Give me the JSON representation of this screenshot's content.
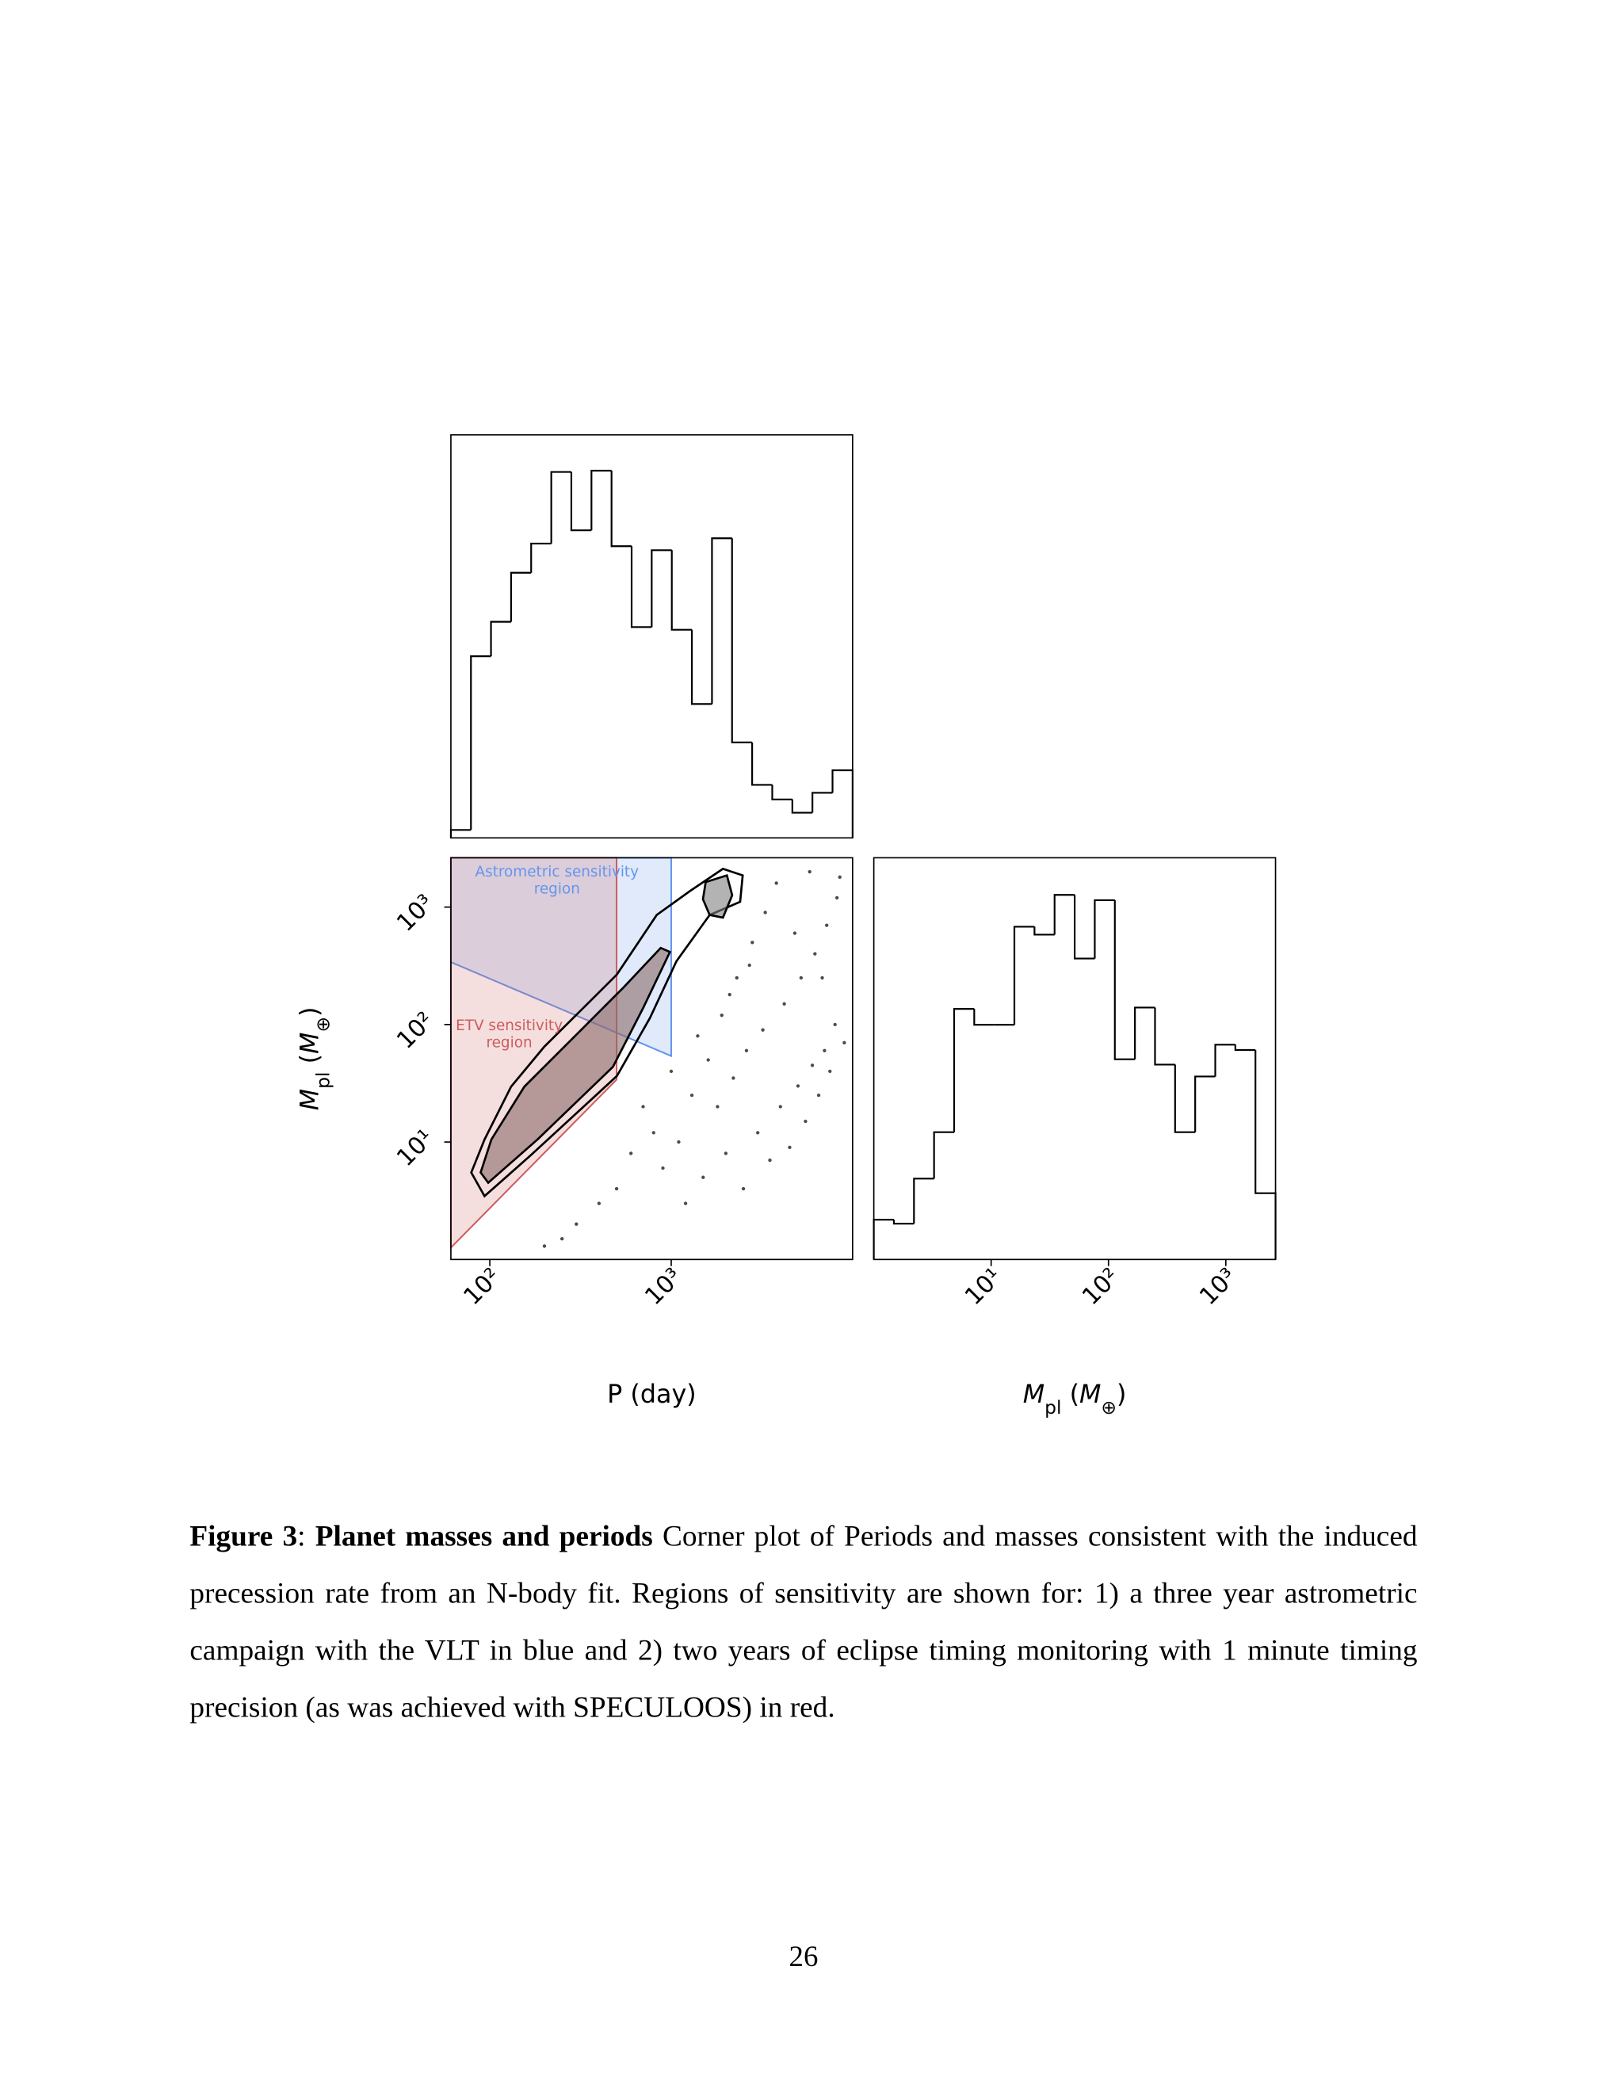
{
  "chart_data": [
    {
      "type": "histogram",
      "xscale": "log",
      "xlim": [
        61,
        10000
      ],
      "ylim": [
        0,
        304
      ],
      "color": "#000000",
      "bins": [
        61.0,
        78.7,
        101.5,
        131.0,
        169.0,
        218.2,
        281.5,
        363.3,
        468.8,
        605.0,
        780.6,
        1007.6,
        1300,
        1678,
        2165,
        2794,
        3606,
        4654,
        6005,
        7750,
        10000
      ],
      "values": [
        6,
        137,
        163,
        200,
        222,
        276,
        232,
        277,
        220,
        159,
        217,
        157,
        101,
        226,
        72,
        40,
        29,
        19,
        34,
        51
      ]
    },
    {
      "type": "scatter2d",
      "xscale": "log",
      "yscale": "log",
      "xlim": [
        61,
        10000
      ],
      "ylim": [
        1,
        2630
      ],
      "xticks": [
        {
          "value": 100,
          "label": "10²"
        },
        {
          "value": 1000,
          "label": "10³"
        }
      ],
      "yticks": [
        {
          "value": 10,
          "label": "10¹"
        },
        {
          "value": 100,
          "label": "10²"
        },
        {
          "value": 1000,
          "label": "10³"
        }
      ],
      "xlabel": "P (day)",
      "ylabel": [
        {
          "text": "M",
          "style": "italic"
        },
        {
          "text": "pl",
          "style": "sub"
        },
        {
          "text": " (",
          "style": "normal"
        },
        {
          "text": "M",
          "style": "italic"
        },
        {
          "text": "⊕",
          "style": "sub"
        },
        {
          "text": ")",
          "style": "normal"
        }
      ],
      "regions": [
        {
          "label": [
            "Astrometric sensitivity",
            "region"
          ],
          "color": "#6495ed",
          "x": [
            61,
            1000,
            1000,
            61
          ],
          "y": [
            340,
            54,
            2630,
            2630
          ]
        },
        {
          "label": [
            "ETV sensitivity",
            "region"
          ],
          "color": "#cd5c5c",
          "x": [
            61,
            500,
            500,
            61
          ],
          "y": [
            1.26,
            34,
            2630,
            2630
          ]
        }
      ],
      "points": {
        "color": "#000000",
        "x": [
          1200,
          1500,
          2000,
          3000,
          4000,
          5000,
          6000,
          7000,
          8000,
          2500,
          3500,
          4500,
          5500,
          6500,
          7500,
          9000,
          1800,
          2200,
          2600,
          3200,
          4200,
          5200,
          6200,
          7200,
          8200,
          1100,
          1300,
          1600,
          1900,
          2300,
          2800,
          3300,
          900,
          800,
          700,
          600,
          500,
          400,
          300,
          250,
          200,
          1000,
          1400,
          2100,
          2700,
          3800,
          5800,
          8500,
          4800,
          6800
        ],
        "y": [
          3,
          5,
          8,
          12,
          20,
          30,
          45,
          60,
          100,
          4,
          7,
          9,
          15,
          25,
          40,
          70,
          20,
          35,
          60,
          90,
          150,
          250,
          400,
          700,
          1200,
          10,
          25,
          50,
          120,
          250,
          500,
          900,
          6,
          12,
          20,
          8,
          4,
          3,
          2,
          1.5,
          1.3,
          40,
          80,
          180,
          320,
          1600,
          2000,
          1800,
          600,
          250
        ]
      },
      "contours": [
        {
          "color": "#000000",
          "fill": "none",
          "x": [
            79,
            93.5,
            168,
            502,
            764,
            1069,
            1629,
            2399,
            2478,
            1928,
            1265,
            832,
            502,
            330,
            199,
            131,
            93.5
          ],
          "y": [
            5.5,
            3.46,
            7.7,
            36.5,
            114,
            346,
            857,
            1109,
            1862,
            2118,
            1365,
            857,
            267,
            140,
            64.4,
            29.6,
            10.5
          ]
        },
        {
          "color": "#000000",
          "fill": "#8a6a6a",
          "x": [
            89,
            98,
            183,
            477,
            703,
            984,
            875,
            546,
            330,
            155,
            102
          ],
          "y": [
            5.5,
            4.5,
            10.5,
            43.6,
            140,
            415,
            449,
            207,
            95,
            29.6,
            10.5
          ]
        },
        {
          "color": "#000000",
          "fill": "#808080",
          "x": [
            1549,
            2028,
            2169,
            1928,
            1629,
            1496
          ],
          "y": [
            1633,
            1862,
            1262,
            813,
            857,
            1167
          ]
        }
      ]
    },
    {
      "type": "histogram",
      "xscale": "log",
      "xlim": [
        1,
        2652.6
      ],
      "ylim": [
        0,
        303
      ],
      "color": "#000000",
      "bins": [
        1,
        1.483,
        2.199,
        3.262,
        4.838,
        7.175,
        10.64,
        15.78,
        23.41,
        34.72,
        51.5,
        76.4,
        113.3,
        168.0,
        249.2,
        369.6,
        548.2,
        813.0,
        1205.9,
        1788.5,
        2652.6
      ],
      "values": [
        30,
        27,
        61,
        96,
        189,
        177,
        177,
        251,
        245,
        275,
        227,
        271,
        151,
        190,
        147,
        96,
        138,
        162,
        158,
        50
      ],
      "xticks": [
        {
          "value": 10,
          "label": "10¹"
        },
        {
          "value": 100,
          "label": "10²"
        },
        {
          "value": 1000,
          "label": "10³"
        }
      ],
      "xlabel": [
        {
          "text": "M",
          "style": "italic"
        },
        {
          "text": "pl",
          "style": "sub"
        },
        {
          "text": " (",
          "style": "normal"
        },
        {
          "text": "M",
          "style": "italic"
        },
        {
          "text": "⊕",
          "style": "sub"
        },
        {
          "text": ")",
          "style": "normal"
        }
      ]
    }
  ],
  "caption": {
    "label": "Figure 3",
    "separator": ":",
    "title": "Planet masses and periods",
    "text": "Corner plot of Periods and masses consistent with the induced precession rate from an N-body fit. Regions of sensitivity are shown for: 1) a three year astrometric campaign with the VLT in blue and 2) two years of eclipse timing monitoring with 1 minute timing precision (as was achieved with SPECULOOS) in red."
  },
  "page_number": "26"
}
